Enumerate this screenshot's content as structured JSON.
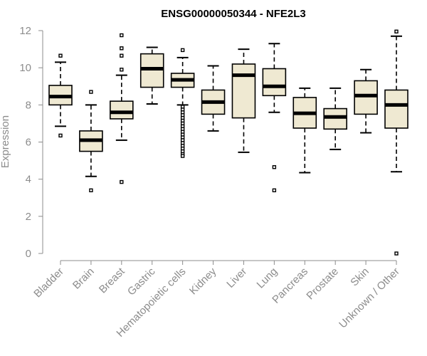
{
  "chart_data": {
    "type": "boxplot",
    "title": "ENSG00000050344 - NFE2L3",
    "ylabel": "Expression",
    "ylim": [
      0,
      12
    ],
    "yticks": [
      0,
      2,
      4,
      6,
      8,
      10,
      12
    ],
    "box_fill": "#efe9d2",
    "box_stroke": "#000000",
    "axis_color": "#8c8c8c",
    "categories": [
      "Bladder",
      "Brain",
      "Breast",
      "Gastric",
      "Hematopoietic cells",
      "Kidney",
      "Liver",
      "Lung",
      "Pancreas",
      "Prostate",
      "Skin",
      "Unknown / Other"
    ],
    "boxes": [
      {
        "whisker_low": 6.85,
        "q1": 8.0,
        "median": 8.45,
        "q3": 9.05,
        "whisker_high": 10.3,
        "outliers": [
          6.35,
          10.65
        ]
      },
      {
        "whisker_low": 4.15,
        "q1": 5.5,
        "median": 6.1,
        "q3": 6.6,
        "whisker_high": 8.0,
        "outliers": [
          3.4,
          8.7
        ]
      },
      {
        "whisker_low": 6.1,
        "q1": 7.25,
        "median": 7.6,
        "q3": 8.2,
        "whisker_high": 9.6,
        "outliers": [
          3.85,
          9.9,
          10.65,
          11.05,
          11.75
        ]
      },
      {
        "whisker_low": 8.05,
        "q1": 8.95,
        "median": 9.95,
        "q3": 10.75,
        "whisker_high": 11.1,
        "outliers": []
      },
      {
        "whisker_low": 8.0,
        "q1": 8.95,
        "median": 9.35,
        "q3": 9.7,
        "whisker_high": 10.55,
        "outliers": [
          10.95,
          7.9,
          7.75,
          7.6,
          7.45,
          7.3,
          7.15,
          7.0,
          6.85,
          6.7,
          6.55,
          6.4,
          6.25,
          6.1,
          5.95,
          5.8,
          5.65,
          5.5,
          5.35,
          5.25
        ]
      },
      {
        "whisker_low": 6.6,
        "q1": 7.5,
        "median": 8.15,
        "q3": 8.8,
        "whisker_high": 10.1,
        "outliers": []
      },
      {
        "whisker_low": 5.45,
        "q1": 7.3,
        "median": 9.6,
        "q3": 10.2,
        "whisker_high": 11.0,
        "outliers": []
      },
      {
        "whisker_low": 7.6,
        "q1": 8.5,
        "median": 9.0,
        "q3": 9.95,
        "whisker_high": 11.3,
        "outliers": [
          4.65,
          3.4
        ]
      },
      {
        "whisker_low": 4.35,
        "q1": 6.75,
        "median": 7.55,
        "q3": 8.4,
        "whisker_high": 8.9,
        "outliers": []
      },
      {
        "whisker_low": 5.6,
        "q1": 6.7,
        "median": 7.35,
        "q3": 7.8,
        "whisker_high": 8.9,
        "outliers": []
      },
      {
        "whisker_low": 6.5,
        "q1": 7.5,
        "median": 8.5,
        "q3": 9.3,
        "whisker_high": 9.9,
        "outliers": []
      },
      {
        "whisker_low": 4.4,
        "q1": 6.75,
        "median": 8.0,
        "q3": 8.8,
        "whisker_high": 11.7,
        "outliers": [
          0.0,
          11.95
        ]
      }
    ]
  }
}
